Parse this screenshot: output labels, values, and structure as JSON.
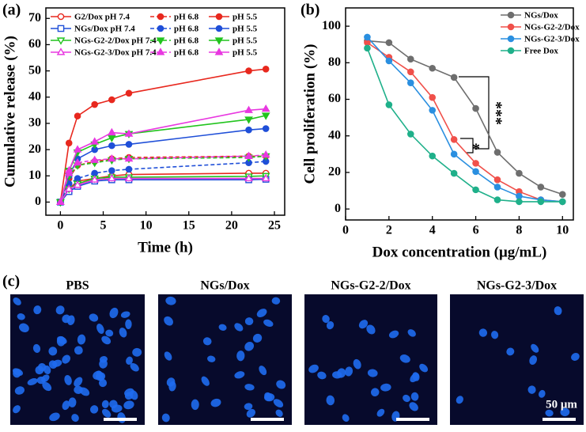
{
  "panel_labels": [
    "(a)",
    "(b)",
    "(c)"
  ],
  "chart_data": [
    {
      "type": "line",
      "xlabel": "Time (h)",
      "ylabel": "Cumulative release (%)",
      "x": [
        0,
        1,
        2,
        4,
        6,
        8,
        22,
        24
      ],
      "xlim": [
        -1.7,
        26.2
      ],
      "xticks": [
        0,
        5,
        10,
        15,
        20,
        25
      ],
      "ylim": [
        -5,
        74
      ],
      "yticks": [
        0,
        10,
        20,
        30,
        40,
        50,
        60,
        70
      ],
      "legend": "upper left",
      "series": [
        {
          "name": "G2/Dox pH 7.4",
          "color": "#e8281e",
          "marker": "circle-open",
          "dashed": false,
          "values": [
            0,
            5,
            8,
            9,
            10,
            10.5,
            11,
            11
          ]
        },
        {
          "name": "pH 6.8",
          "color": "#e8281e",
          "marker": "circle",
          "dashed": true,
          "values": [
            0,
            9,
            14,
            15.5,
            16.5,
            17,
            17.5,
            17.5
          ]
        },
        {
          "name": "pH 5.5",
          "color": "#e8281e",
          "marker": "circle",
          "dashed": false,
          "values": [
            0,
            22.5,
            32.8,
            37.2,
            39,
            41.5,
            50,
            50.7
          ]
        },
        {
          "name": "NGs/Dox pH 7.4",
          "color": "#1f4fd8",
          "marker": "square-open",
          "dashed": false,
          "values": [
            0,
            4,
            6,
            8,
            8.5,
            8.5,
            8.5,
            8.7
          ]
        },
        {
          "name": "pH 6.8",
          "color": "#1f4fd8",
          "marker": "circle",
          "dashed": true,
          "values": [
            0,
            7,
            9,
            11,
            12,
            12.5,
            15,
            15.5
          ]
        },
        {
          "name": "pH 5.5",
          "color": "#1f4fd8",
          "marker": "circle",
          "dashed": false,
          "values": [
            0,
            10,
            16.5,
            20,
            21.5,
            22,
            27.5,
            28
          ]
        },
        {
          "name": "NGs-G2-2/Dox pH 7.4",
          "color": "#22c41e",
          "marker": "triangle-down-open",
          "dashed": false,
          "values": [
            0,
            5,
            7,
            9,
            9.5,
            9.5,
            9.8,
            10
          ]
        },
        {
          "name": "pH 6.8",
          "color": "#22c41e",
          "marker": "triangle-down",
          "dashed": true,
          "values": [
            0,
            10,
            14,
            15,
            16,
            16.5,
            17,
            17.5
          ]
        },
        {
          "name": "pH 5.5",
          "color": "#22c41e",
          "marker": "triangle-down",
          "dashed": false,
          "values": [
            0,
            12,
            19,
            22,
            24.5,
            26,
            31.5,
            33
          ]
        },
        {
          "name": "NGs-G2-3/Dox pH 7.4",
          "color": "#e838e0",
          "marker": "triangle-up-open",
          "dashed": false,
          "values": [
            0,
            5,
            6.5,
            8.5,
            9,
            9,
            9,
            9
          ]
        },
        {
          "name": "pH 6.8",
          "color": "#e838e0",
          "marker": "triangle-up",
          "dashed": true,
          "values": [
            0,
            11,
            15,
            16,
            16.5,
            16.5,
            17.5,
            18
          ]
        },
        {
          "name": "pH 5.5",
          "color": "#e838e0",
          "marker": "triangle-up",
          "dashed": false,
          "values": [
            0,
            12,
            20,
            23,
            26.5,
            26,
            35,
            35.5
          ]
        }
      ]
    },
    {
      "type": "line",
      "xlabel": "Dox concentration (μg/mL)",
      "ylabel": "Cell proliferation (%)",
      "x": [
        1,
        2,
        3,
        4,
        5,
        6,
        7,
        8,
        9,
        10
      ],
      "xlim": [
        0,
        10.5
      ],
      "xticks": [
        0,
        2,
        4,
        6,
        8,
        10
      ],
      "ylim": [
        -6,
        110
      ],
      "yticks": [
        0,
        20,
        40,
        60,
        80,
        100
      ],
      "legend": "upper right",
      "annotations": [
        "***",
        "*"
      ],
      "series": [
        {
          "name": "NGs/Dox",
          "color": "#6e6e6e",
          "marker": "circle",
          "dashed": false,
          "values": [
            92,
            91,
            82,
            77,
            72,
            55,
            31,
            19.5,
            12,
            8
          ]
        },
        {
          "name": "NGs-G2-2/Dox",
          "color": "#f0504a",
          "marker": "circle",
          "dashed": false,
          "values": [
            91,
            83,
            75,
            61,
            38,
            25,
            16,
            9.5,
            5,
            4
          ]
        },
        {
          "name": "NGs-G2-3/Dox",
          "color": "#2a8fe0",
          "marker": "circle",
          "dashed": false,
          "values": [
            94,
            81,
            69,
            54,
            30,
            20.5,
            12,
            7,
            5,
            4
          ]
        },
        {
          "name": "Free Dox",
          "color": "#1fb08a",
          "marker": "circle",
          "dashed": false,
          "values": [
            88,
            57,
            41,
            29,
            19.5,
            10.5,
            5,
            4,
            4,
            4
          ]
        }
      ]
    }
  ],
  "images": {
    "labels": [
      "PBS",
      "NGs/Dox",
      "NGs-G2-2/Dox",
      "NGs-G2-3/Dox"
    ],
    "scale_bar": "50 μm"
  }
}
